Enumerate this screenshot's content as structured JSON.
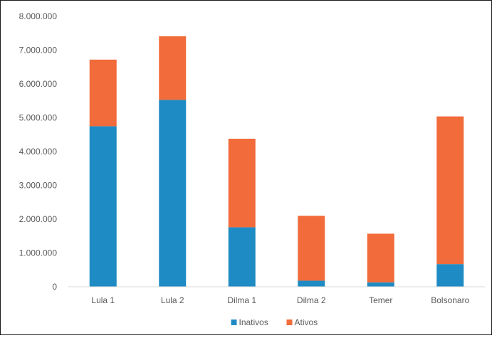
{
  "chart_data": {
    "type": "bar",
    "stacked": true,
    "categories": [
      "Lula 1",
      "Lula 2",
      "Dilma 1",
      "Dilma 2",
      "Temer",
      "Bolsonaro"
    ],
    "series": [
      {
        "name": "Inativos",
        "color": "#1f8bc4",
        "values": [
          4750000,
          5530000,
          1760000,
          180000,
          130000,
          670000
        ]
      },
      {
        "name": "Ativos",
        "color": "#f26b3a",
        "values": [
          1970000,
          1880000,
          2620000,
          1920000,
          1440000,
          4370000
        ]
      }
    ],
    "yticks": [
      "0",
      "1.000.000",
      "2.000.000",
      "3.000.000",
      "4.000.000",
      "5.000.000",
      "6.000.000",
      "7.000.000",
      "8.000.000"
    ],
    "ylim": [
      0,
      8000000
    ],
    "grid": false,
    "legend": "bottom"
  }
}
